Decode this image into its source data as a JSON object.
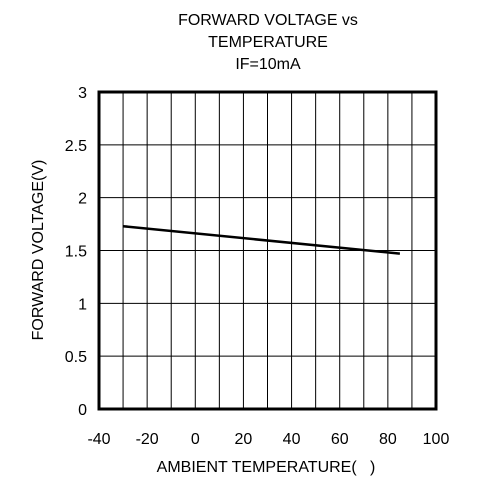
{
  "chart_data": {
    "type": "line",
    "title": [
      "FORWARD VOLTAGE vs",
      "TEMPERATURE",
      "IF=10mA"
    ],
    "xlabel": "AMBIENT TEMPERATURE(   )",
    "ylabel": "FORWARD VOLTAGE(V)",
    "xlim": [
      -40,
      100
    ],
    "ylim": [
      0,
      3
    ],
    "x_ticks": [
      -40,
      -20,
      0,
      20,
      40,
      60,
      80,
      100
    ],
    "y_ticks": [
      0,
      0.5,
      1,
      1.5,
      2,
      2.5,
      3
    ],
    "x_tick_labels": [
      "-40",
      "-20",
      "0",
      "20",
      "40",
      "60",
      "80",
      "100"
    ],
    "y_tick_labels": [
      "0",
      "0.5",
      "1",
      "1.5",
      "2",
      "2.5",
      "3"
    ],
    "grid": true,
    "series": [
      {
        "x": [
          -30,
          85
        ],
        "y": [
          1.73,
          1.47
        ]
      }
    ]
  }
}
